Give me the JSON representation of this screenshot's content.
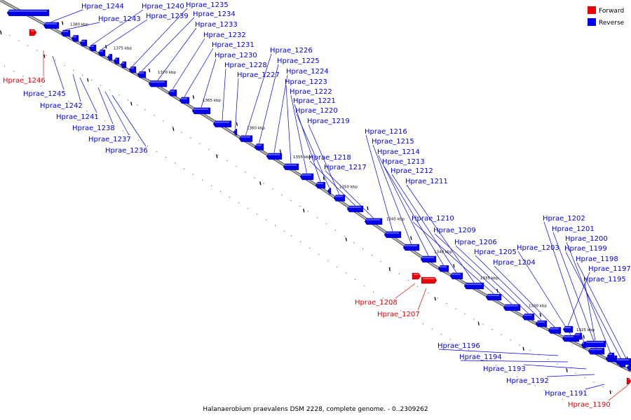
{
  "caption": "Halanaerobium praevalens DSM 2228, complete genome. - 0..2309262",
  "legend": {
    "position": "top-right",
    "items": [
      {
        "label": "Forward",
        "color": "#ee0000"
      },
      {
        "label": "Reverse",
        "color": "#0000ee"
      }
    ]
  },
  "colors": {
    "forward": "#ee0000",
    "reverse": "#0000ee",
    "backbone": "#888888",
    "ticks": "#000000"
  },
  "scale": {
    "unit": "kbp",
    "labels": [
      "1380 kbp",
      "1375 kbp",
      "1370 kbp",
      "1365 kbp",
      "1360 kbp",
      "1355 kbp",
      "1350 kbp",
      "1345 kbp",
      "1340 kbp",
      "1335 kbp",
      "1330 kbp",
      "1325 kbp"
    ]
  },
  "genes": [
    {
      "id": "Hprae_1246",
      "strand": "forward"
    },
    {
      "id": "Hprae_1245",
      "strand": "reverse"
    },
    {
      "id": "Hprae_1244",
      "strand": "reverse"
    },
    {
      "id": "Hprae_1243",
      "strand": "reverse"
    },
    {
      "id": "Hprae_1242",
      "strand": "reverse"
    },
    {
      "id": "Hprae_1241",
      "strand": "reverse"
    },
    {
      "id": "Hprae_1240",
      "strand": "reverse"
    },
    {
      "id": "Hprae_1239",
      "strand": "reverse"
    },
    {
      "id": "Hprae_1238",
      "strand": "reverse"
    },
    {
      "id": "Hprae_1237",
      "strand": "reverse"
    },
    {
      "id": "Hprae_1236",
      "strand": "reverse"
    },
    {
      "id": "Hprae_1235",
      "strand": "reverse"
    },
    {
      "id": "Hprae_1234",
      "strand": "reverse"
    },
    {
      "id": "Hprae_1233",
      "strand": "reverse"
    },
    {
      "id": "Hprae_1232",
      "strand": "reverse"
    },
    {
      "id": "Hprae_1231",
      "strand": "reverse"
    },
    {
      "id": "Hprae_1230",
      "strand": "reverse"
    },
    {
      "id": "Hprae_1228",
      "strand": "reverse"
    },
    {
      "id": "Hprae_1227",
      "strand": "reverse"
    },
    {
      "id": "Hprae_1226",
      "strand": "reverse"
    },
    {
      "id": "Hprae_1225",
      "strand": "reverse"
    },
    {
      "id": "Hprae_1224",
      "strand": "reverse"
    },
    {
      "id": "Hprae_1223",
      "strand": "reverse"
    },
    {
      "id": "Hprae_1222",
      "strand": "reverse"
    },
    {
      "id": "Hprae_1221",
      "strand": "reverse"
    },
    {
      "id": "Hprae_1220",
      "strand": "reverse"
    },
    {
      "id": "Hprae_1219",
      "strand": "reverse"
    },
    {
      "id": "Hprae_1218",
      "strand": "reverse"
    },
    {
      "id": "Hprae_1217",
      "strand": "reverse"
    },
    {
      "id": "Hprae_1216",
      "strand": "reverse"
    },
    {
      "id": "Hprae_1215",
      "strand": "reverse"
    },
    {
      "id": "Hprae_1214",
      "strand": "reverse"
    },
    {
      "id": "Hprae_1213",
      "strand": "reverse"
    },
    {
      "id": "Hprae_1212",
      "strand": "reverse"
    },
    {
      "id": "Hprae_1211",
      "strand": "reverse"
    },
    {
      "id": "Hprae_1210",
      "strand": "reverse"
    },
    {
      "id": "Hprae_1209",
      "strand": "reverse"
    },
    {
      "id": "Hprae_1208",
      "strand": "forward"
    },
    {
      "id": "Hprae_1207",
      "strand": "forward"
    },
    {
      "id": "Hprae_1206",
      "strand": "reverse"
    },
    {
      "id": "Hprae_1205",
      "strand": "reverse"
    },
    {
      "id": "Hprae_1204",
      "strand": "reverse"
    },
    {
      "id": "Hprae_1203",
      "strand": "reverse"
    },
    {
      "id": "Hprae_1202",
      "strand": "reverse"
    },
    {
      "id": "Hprae_1201",
      "strand": "reverse"
    },
    {
      "id": "Hprae_1200",
      "strand": "reverse"
    },
    {
      "id": "Hprae_1199",
      "strand": "reverse"
    },
    {
      "id": "Hprae_1198",
      "strand": "reverse"
    },
    {
      "id": "Hprae_1197",
      "strand": "reverse"
    },
    {
      "id": "Hprae_1196",
      "strand": "reverse"
    },
    {
      "id": "Hprae_1195",
      "strand": "reverse"
    },
    {
      "id": "Hprae_1194",
      "strand": "reverse"
    },
    {
      "id": "Hprae_1193",
      "strand": "reverse"
    },
    {
      "id": "Hprae_1192",
      "strand": "reverse"
    },
    {
      "id": "Hprae_1191",
      "strand": "reverse"
    },
    {
      "id": "Hprae_1190",
      "strand": "forward"
    }
  ]
}
